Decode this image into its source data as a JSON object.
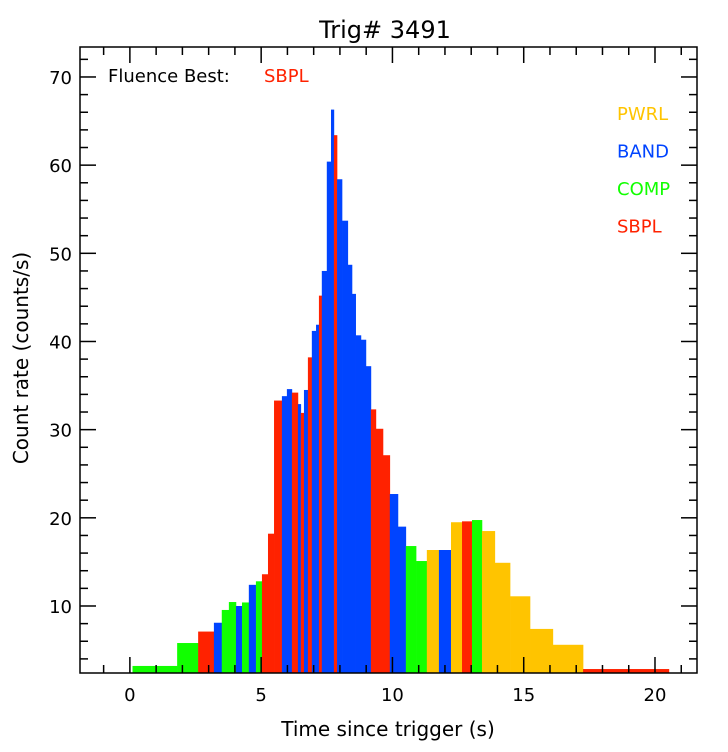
{
  "chart_data": {
    "type": "bar",
    "title": "Trig# 3491",
    "xlabel": "Time since trigger (s)",
    "ylabel": "Count rate (counts/s)",
    "xlim": [
      -1.9,
      21.6
    ],
    "ylim": [
      2.4,
      73.4
    ],
    "xticks": [
      0,
      5,
      10,
      15,
      20
    ],
    "yticks": [
      10,
      20,
      30,
      40,
      50,
      60,
      70
    ],
    "annotation": {
      "label": "Fluence Best:",
      "value": "SBPL",
      "value_model": "SBPL"
    },
    "legend": {
      "placement": "top-right",
      "entries": [
        {
          "name": "PWRL",
          "color": "#FFC400"
        },
        {
          "name": "BAND",
          "color": "#0044FF"
        },
        {
          "name": "COMP",
          "color": "#11FF00"
        },
        {
          "name": "SBPL",
          "color": "#FF2200"
        }
      ]
    },
    "bars": [
      {
        "x0": 0.1,
        "x1": 1.8,
        "y": 3.2,
        "model": "COMP"
      },
      {
        "x0": 1.8,
        "x1": 2.6,
        "y": 5.8,
        "model": "COMP"
      },
      {
        "x0": 2.6,
        "x1": 3.2,
        "y": 7.1,
        "model": "SBPL"
      },
      {
        "x0": 3.2,
        "x1": 3.5,
        "y": 8.1,
        "model": "BAND"
      },
      {
        "x0": 3.5,
        "x1": 3.77,
        "y": 9.55,
        "model": "COMP"
      },
      {
        "x0": 3.77,
        "x1": 4.04,
        "y": 10.45,
        "model": "COMP"
      },
      {
        "x0": 4.04,
        "x1": 4.27,
        "y": 10.0,
        "model": "BAND"
      },
      {
        "x0": 4.27,
        "x1": 4.53,
        "y": 10.4,
        "model": "COMP"
      },
      {
        "x0": 4.53,
        "x1": 4.8,
        "y": 12.4,
        "model": "BAND"
      },
      {
        "x0": 4.8,
        "x1": 5.03,
        "y": 12.8,
        "model": "COMP"
      },
      {
        "x0": 5.03,
        "x1": 5.26,
        "y": 13.6,
        "model": "SBPL"
      },
      {
        "x0": 5.26,
        "x1": 5.49,
        "y": 18.2,
        "model": "SBPL"
      },
      {
        "x0": 5.49,
        "x1": 5.79,
        "y": 33.3,
        "model": "SBPL"
      },
      {
        "x0": 5.79,
        "x1": 5.98,
        "y": 33.8,
        "model": "BAND"
      },
      {
        "x0": 5.98,
        "x1": 6.17,
        "y": 34.6,
        "model": "BAND"
      },
      {
        "x0": 6.17,
        "x1": 6.4,
        "y": 34.2,
        "model": "SBPL"
      },
      {
        "x0": 6.4,
        "x1": 6.51,
        "y": 32.9,
        "model": "BAND"
      },
      {
        "x0": 6.51,
        "x1": 6.63,
        "y": 31.9,
        "model": "SBPL"
      },
      {
        "x0": 6.63,
        "x1": 6.78,
        "y": 34.5,
        "model": "BAND"
      },
      {
        "x0": 6.78,
        "x1": 6.93,
        "y": 38.2,
        "model": "SBPL"
      },
      {
        "x0": 6.93,
        "x1": 7.09,
        "y": 41.2,
        "model": "BAND"
      },
      {
        "x0": 7.09,
        "x1": 7.2,
        "y": 41.9,
        "model": "BAND"
      },
      {
        "x0": 7.2,
        "x1": 7.31,
        "y": 45.2,
        "model": "SBPL"
      },
      {
        "x0": 7.31,
        "x1": 7.5,
        "y": 48.0,
        "model": "BAND"
      },
      {
        "x0": 7.5,
        "x1": 7.66,
        "y": 60.4,
        "model": "BAND"
      },
      {
        "x0": 7.66,
        "x1": 7.77,
        "y": 66.3,
        "model": "BAND"
      },
      {
        "x0": 7.77,
        "x1": 7.89,
        "y": 63.4,
        "model": "SBPL"
      },
      {
        "x0": 7.89,
        "x1": 8.08,
        "y": 58.4,
        "model": "BAND"
      },
      {
        "x0": 8.08,
        "x1": 8.3,
        "y": 53.7,
        "model": "BAND"
      },
      {
        "x0": 8.3,
        "x1": 8.46,
        "y": 48.7,
        "model": "BAND"
      },
      {
        "x0": 8.46,
        "x1": 8.6,
        "y": 45.4,
        "model": "BAND"
      },
      {
        "x0": 8.6,
        "x1": 8.8,
        "y": 40.7,
        "model": "BAND"
      },
      {
        "x0": 8.8,
        "x1": 8.99,
        "y": 40.2,
        "model": "BAND"
      },
      {
        "x0": 8.99,
        "x1": 9.18,
        "y": 37.2,
        "model": "BAND"
      },
      {
        "x0": 9.18,
        "x1": 9.37,
        "y": 32.3,
        "model": "SBPL"
      },
      {
        "x0": 9.37,
        "x1": 9.64,
        "y": 30.1,
        "model": "SBPL"
      },
      {
        "x0": 9.64,
        "x1": 9.9,
        "y": 27.1,
        "model": "SBPL"
      },
      {
        "x0": 9.9,
        "x1": 10.21,
        "y": 22.7,
        "model": "BAND"
      },
      {
        "x0": 10.21,
        "x1": 10.51,
        "y": 19.0,
        "model": "BAND"
      },
      {
        "x0": 10.51,
        "x1": 10.9,
        "y": 16.8,
        "model": "COMP"
      },
      {
        "x0": 10.9,
        "x1": 11.31,
        "y": 15.1,
        "model": "COMP"
      },
      {
        "x0": 11.31,
        "x1": 11.77,
        "y": 16.35,
        "model": "PWRL"
      },
      {
        "x0": 11.77,
        "x1": 12.23,
        "y": 16.35,
        "model": "BAND"
      },
      {
        "x0": 12.23,
        "x1": 12.65,
        "y": 19.5,
        "model": "PWRL"
      },
      {
        "x0": 12.65,
        "x1": 13.03,
        "y": 19.6,
        "model": "SBPL"
      },
      {
        "x0": 13.03,
        "x1": 13.41,
        "y": 19.75,
        "model": "COMP"
      },
      {
        "x0": 13.41,
        "x1": 13.9,
        "y": 18.5,
        "model": "PWRL"
      },
      {
        "x0": 13.9,
        "x1": 14.48,
        "y": 14.9,
        "model": "PWRL"
      },
      {
        "x0": 14.48,
        "x1": 15.24,
        "y": 11.1,
        "model": "PWRL"
      },
      {
        "x0": 15.24,
        "x1": 16.11,
        "y": 7.4,
        "model": "PWRL"
      },
      {
        "x0": 16.11,
        "x1": 17.26,
        "y": 5.6,
        "model": "PWRL"
      },
      {
        "x0": 17.26,
        "x1": 20.53,
        "y": 2.85,
        "model": "SBPL"
      }
    ]
  }
}
